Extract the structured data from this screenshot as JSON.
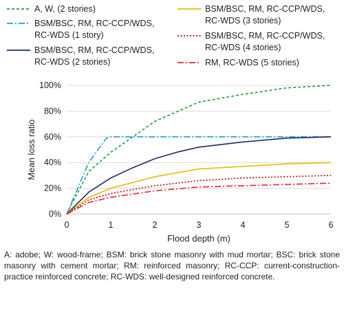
{
  "chart_data": {
    "type": "line",
    "xlabel": "Flood depth (m)",
    "ylabel": "Mean loss ratio",
    "xlim": [
      0,
      6
    ],
    "ylim": [
      0,
      100
    ],
    "x_ticks": [
      "0",
      "1",
      "2",
      "3",
      "4",
      "5",
      "6"
    ],
    "y_ticks": [
      "0%",
      "20%",
      "40%",
      "60%",
      "80%",
      "100%"
    ],
    "grid": "horizontal",
    "legend_position": "top",
    "series": [
      {
        "name": "A, W, (2 stories)",
        "color": "#1e9e3a",
        "dash": "dashed",
        "x": [
          0,
          0.1,
          0.5,
          1,
          1.5,
          2,
          3,
          4,
          5,
          6
        ],
        "y": [
          0,
          7,
          33,
          48,
          60,
          72,
          87,
          93,
          98,
          100
        ]
      },
      {
        "name": "BSM/BSC, RM, RC-CCP/WDS, RC-WDS (1 story)",
        "name_lines": [
          "BSM/BSC, RM, RC-CCP/WDS,",
          "RC-WDS (1 story)"
        ],
        "color": "#1a9fd9",
        "dash": "dashdot",
        "x": [
          0,
          0.5,
          0.9,
          1,
          2,
          3,
          4,
          5,
          6
        ],
        "y": [
          0,
          40,
          59,
          60,
          60,
          60,
          60,
          60,
          60
        ]
      },
      {
        "name": "BSM/BSC, RM, RC-CCP/WDS, RC-WDS (2 stories)",
        "name_lines": [
          "BSM/BSC, RM, RC-CCP/WDS,",
          "RC-WDS (2 stories)"
        ],
        "color": "#1c2a6b",
        "dash": "solid",
        "x": [
          0,
          0.5,
          1,
          1.5,
          2,
          2.5,
          3,
          4,
          5,
          6
        ],
        "y": [
          0,
          17,
          28,
          36,
          43,
          48,
          52,
          56,
          59,
          60
        ]
      },
      {
        "name": "BSM/BSC, RM, RC-CCP/WDS, RC-WDS (3 stories)",
        "name_lines": [
          "BSM/BSC, RM, RC-CCP/WDS,",
          "RC-WDS (3 stories)"
        ],
        "color": "#f2b600",
        "dash": "solid",
        "x": [
          0,
          0.5,
          1,
          2,
          3,
          4,
          5,
          6
        ],
        "y": [
          0,
          13,
          20,
          29,
          35,
          37,
          39,
          40
        ]
      },
      {
        "name": "BSM/BSC, RM, RC-CCP/WDS, RC-WDS (4 stories)",
        "name_lines": [
          "BSM/BSC, RM, RC-CCP/WDS,",
          "RC-WDS (4 stories)"
        ],
        "color": "#c00000",
        "dash": "dotted",
        "x": [
          0,
          0.5,
          1,
          2,
          3,
          4,
          5,
          6
        ],
        "y": [
          0,
          11,
          16,
          22,
          26,
          28,
          29,
          30
        ]
      },
      {
        "name": "RM, RC-WDS (5 stories)",
        "color": "#e8242a",
        "dash": "dashdot",
        "x": [
          0,
          0.5,
          1,
          2,
          3,
          4,
          5,
          6
        ],
        "y": [
          0,
          9,
          13,
          18,
          21,
          22,
          23,
          24
        ]
      }
    ]
  },
  "footnote": "A: adobe; W: wood-frame; BSM: brick stone masonry with mud mortar; BSC: brick stone masonry with cement mortar; RM: reinforced masonry; RC-CCP: current-construction-practice reinforced concrete; RC-WDS: well-designed reinforced concrete."
}
